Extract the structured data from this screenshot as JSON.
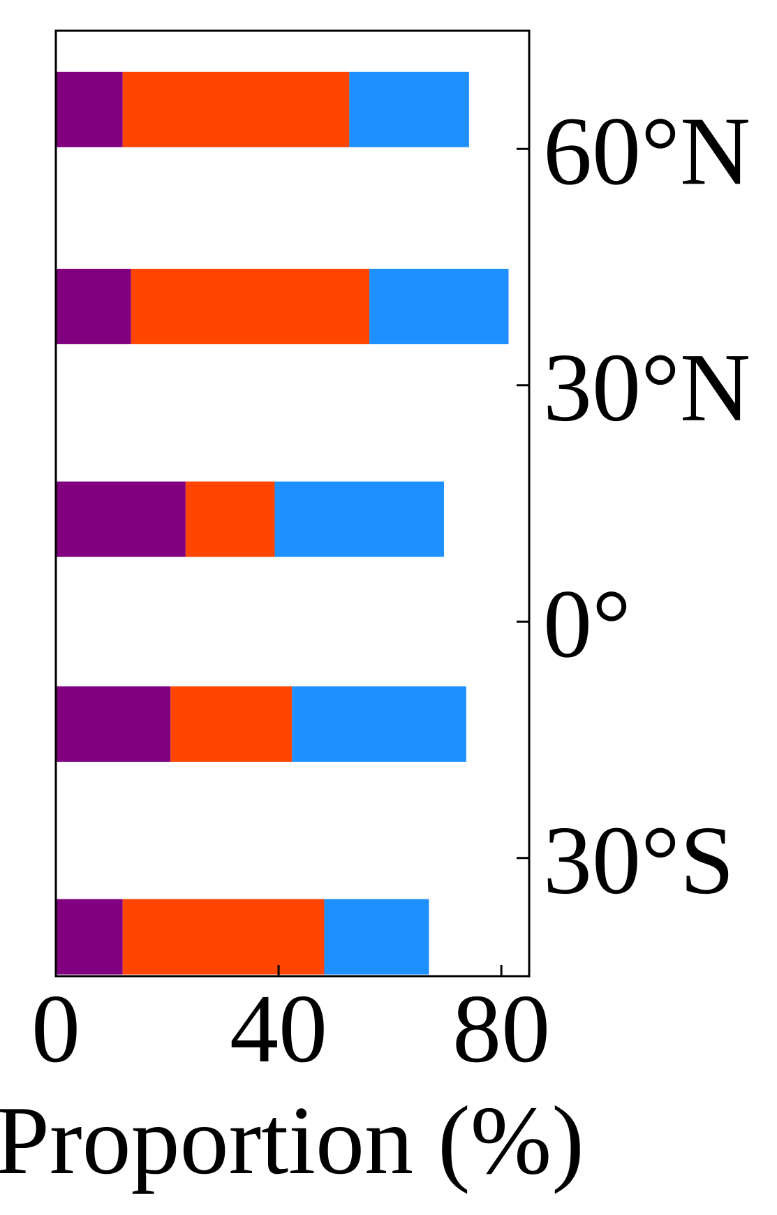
{
  "chart_data": {
    "type": "bar",
    "orientation": "horizontal",
    "stacked": true,
    "xlabel": "Proportion (%)",
    "ylabel": "",
    "xlim": [
      0,
      85
    ],
    "xticks": [
      0,
      40,
      80
    ],
    "ylim": [
      -45,
      75
    ],
    "yticks": [
      {
        "value": 60,
        "label": "60°N"
      },
      {
        "value": 30,
        "label": "30°N"
      },
      {
        "value": 0,
        "label": "0°"
      },
      {
        "value": -30,
        "label": "30°S"
      }
    ],
    "y_axis_side": "right",
    "grid": false,
    "legend": "none",
    "categories": [
      65,
      40,
      13,
      -13,
      -40
    ],
    "series": [
      {
        "color": "#800080",
        "values": [
          12.0,
          13.5,
          23.3,
          20.6,
          12.0
        ]
      },
      {
        "color": "#ff4500",
        "values": [
          40.7,
          42.8,
          16.0,
          21.8,
          36.2
        ]
      },
      {
        "color": "#1e90ff",
        "values": [
          21.5,
          25.0,
          30.4,
          31.3,
          18.8
        ]
      }
    ]
  }
}
